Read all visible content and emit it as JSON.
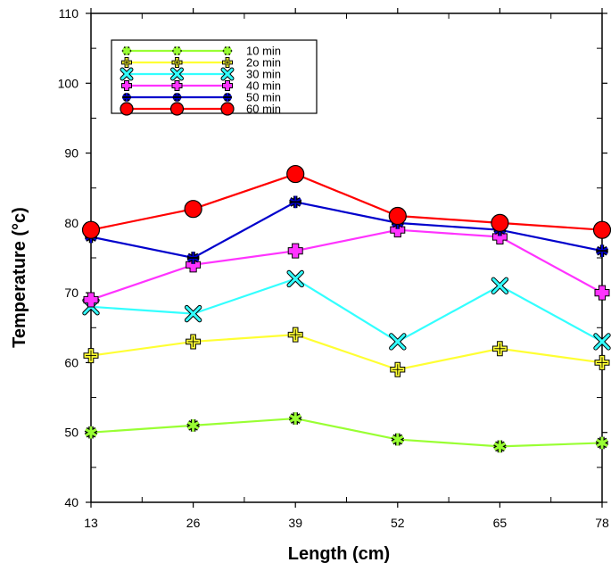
{
  "chart_data": {
    "type": "line",
    "title": "",
    "xlabel": "Length (cm)",
    "ylabel": "Temperature (°c)",
    "x": [
      13,
      26,
      39,
      52,
      65,
      78
    ],
    "x_tick_labels": [
      "13",
      "26",
      "39",
      "52",
      "65",
      "78"
    ],
    "ylim": [
      40,
      110
    ],
    "y_ticks": [
      40,
      50,
      60,
      70,
      80,
      90,
      100,
      110
    ],
    "y_tick_labels": [
      "40",
      "50",
      "60",
      "70",
      "80",
      "90",
      "100",
      "110"
    ],
    "grid": false,
    "legend_position": "top-left",
    "series": [
      {
        "name": "10 min",
        "color": "#99ff33",
        "marker": "star",
        "values": [
          50,
          51,
          52,
          49,
          48,
          48.5
        ]
      },
      {
        "name": "2o min",
        "color": "#ffff33",
        "marker": "cross-square",
        "values": [
          61,
          63,
          64,
          59,
          62,
          60
        ]
      },
      {
        "name": "30 min",
        "color": "#33ffff",
        "marker": "x",
        "values": [
          68,
          67,
          72,
          63,
          71,
          63
        ]
      },
      {
        "name": "40 min",
        "color": "#ff33ff",
        "marker": "plus",
        "values": [
          69,
          74,
          76,
          79,
          78,
          70
        ]
      },
      {
        "name": "50 min",
        "color": "#0000cc",
        "marker": "asterisk",
        "values": [
          78,
          75,
          83,
          80,
          79,
          76
        ]
      },
      {
        "name": "60 min",
        "color": "#ff0000",
        "marker": "circle",
        "values": [
          79,
          82,
          87,
          81,
          80,
          79
        ]
      }
    ]
  }
}
